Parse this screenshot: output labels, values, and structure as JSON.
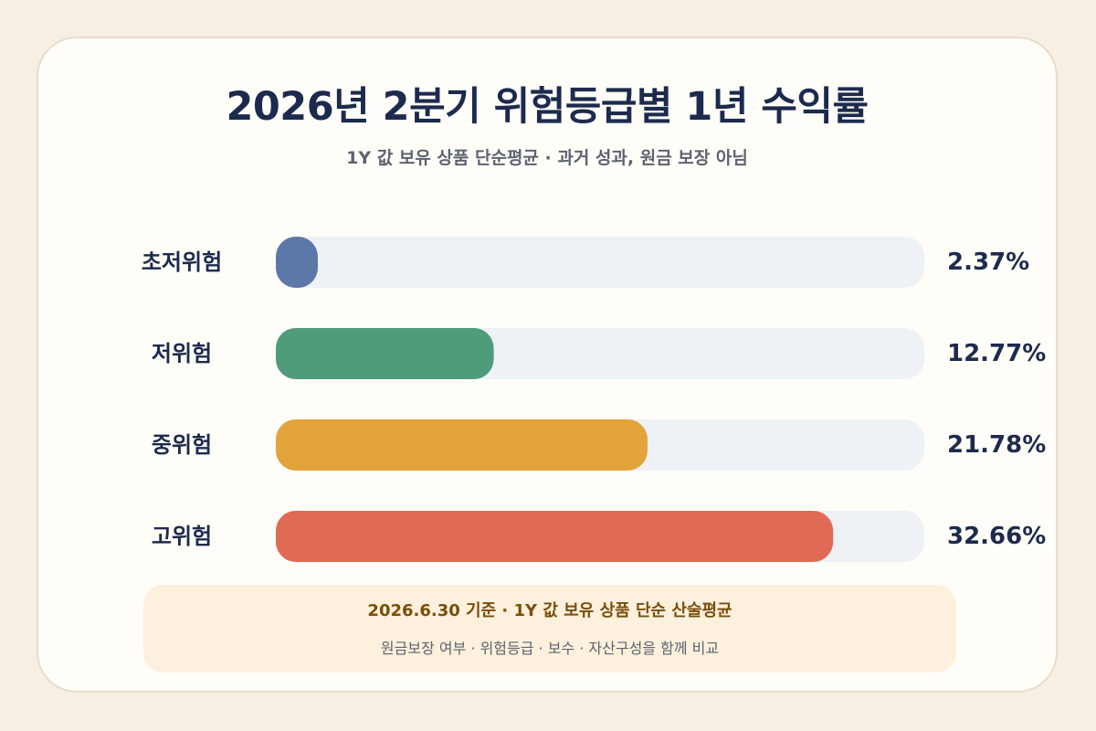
{
  "chart_data": {
    "type": "bar",
    "orientation": "horizontal",
    "title": "2026년 2분기 위험등급별 1년 수익률",
    "subtitle": "1Y 값 보유 상품 단순평균 · 과거 성과, 원금 보장 아님",
    "categories": [
      "초저위험",
      "저위험",
      "중위험",
      "고위험"
    ],
    "values": [
      2.37,
      12.77,
      21.78,
      32.66
    ],
    "value_labels": [
      "2.37%",
      "12.77%",
      "21.78%",
      "32.66%"
    ],
    "colors": [
      "#5b78a8",
      "#4f9c7a",
      "#e3a33b",
      "#e06b55"
    ],
    "track_color": "#eef1f6",
    "xlim": [
      0,
      38
    ],
    "grid": false,
    "legend": "none"
  },
  "footnote": {
    "line1": "2026.6.30 기준 · 1Y 값 보유 상품 단순 산술평균",
    "line2": "원금보장 여부 · 위험등급 · 보수 · 자산구성을 함께 비교"
  }
}
